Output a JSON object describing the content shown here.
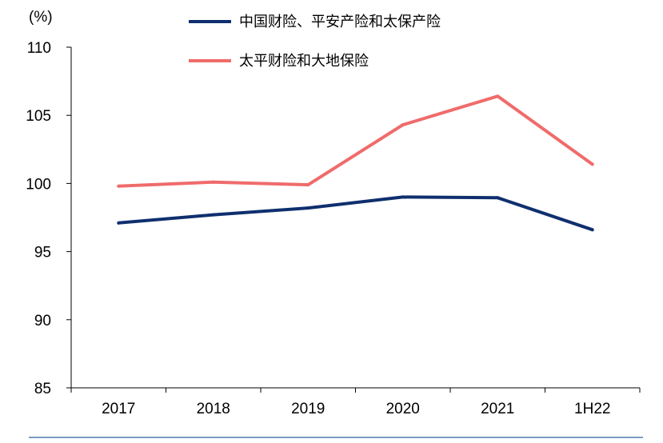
{
  "chart_data": {
    "type": "line",
    "unit_label": "(%)",
    "categories": [
      "2017",
      "2018",
      "2019",
      "2020",
      "2021",
      "1H22"
    ],
    "ylim": [
      85,
      110
    ],
    "yticks": [
      85,
      90,
      95,
      100,
      105,
      110
    ],
    "grid": false,
    "legend_position": "top",
    "series": [
      {
        "name": "中国财险、平安产险和太保产险",
        "color": "#0f2f6e",
        "values": [
          97.1,
          97.7,
          98.2,
          99.0,
          98.95,
          96.6
        ]
      },
      {
        "name": "太平财险和大地保险",
        "color": "#f06b6b",
        "values": [
          99.8,
          100.1,
          99.9,
          104.3,
          106.4,
          101.4
        ]
      }
    ]
  },
  "footer_rule_color": "#7a9cc6"
}
